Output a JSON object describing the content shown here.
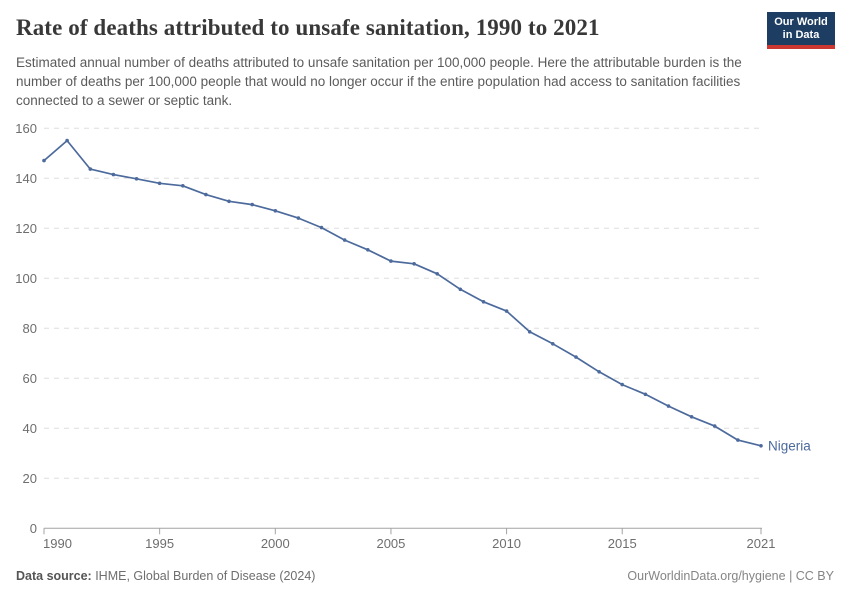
{
  "header": {
    "title": "Rate of deaths attributed to unsafe sanitation, 1990 to 2021",
    "subtitle": "Estimated annual number of deaths attributed to unsafe sanitation per 100,000 people. Here the attributable burden is the number of deaths per 100,000 people that would no longer occur if the entire population had access to sanitation facilities connected to a sewer or septic tank.",
    "logo": {
      "line1": "Our World",
      "line2": "in Data"
    }
  },
  "chart_data": {
    "type": "line",
    "title": "Rate of deaths attributed to unsafe sanitation, 1990 to 2021",
    "x": [
      1990,
      1991,
      1992,
      1993,
      1994,
      1995,
      1996,
      1997,
      1998,
      1999,
      2000,
      2001,
      2002,
      2003,
      2004,
      2005,
      2006,
      2007,
      2008,
      2009,
      2010,
      2011,
      2012,
      2013,
      2014,
      2015,
      2016,
      2017,
      2018,
      2019,
      2020,
      2021
    ],
    "series": [
      {
        "name": "Nigeria",
        "color": "#4c6a9c",
        "values": [
          147.1,
          155.1,
          143.7,
          141.5,
          139.8,
          138.0,
          137.0,
          133.5,
          130.8,
          129.5,
          127.0,
          124.1,
          120.3,
          115.3,
          111.4,
          106.9,
          105.8,
          101.8,
          95.6,
          90.6,
          86.9,
          78.6,
          73.8,
          68.5,
          62.6,
          57.5,
          53.6,
          48.9,
          44.6,
          40.9,
          35.3,
          33.0
        ]
      }
    ],
    "xlabel": "",
    "ylabel": "",
    "xlim": [
      1990,
      2021
    ],
    "ylim": [
      0,
      160
    ],
    "yticks": [
      0,
      20,
      40,
      60,
      80,
      100,
      120,
      140,
      160
    ],
    "xticks": [
      1990,
      1995,
      2000,
      2005,
      2010,
      2015,
      2021
    ],
    "grid": "horizontal-dashed",
    "legend_position": "end-of-line-label",
    "end_label": "Nigeria"
  },
  "footer": {
    "source_label": "Data source:",
    "source_value": " IHME, Global Burden of Disease (2024)",
    "credit": "OurWorldinData.org/hygiene | CC BY"
  },
  "colors": {
    "line": "#4c6a9c",
    "title_text": "#383838",
    "subtitle_text": "#5b5b5b",
    "axis_text": "#6e6e6e",
    "gridline": "#dddddd",
    "axis_line": "#a3a3a3",
    "logo_bg": "#1d3d63",
    "logo_accent": "#cb3731"
  }
}
